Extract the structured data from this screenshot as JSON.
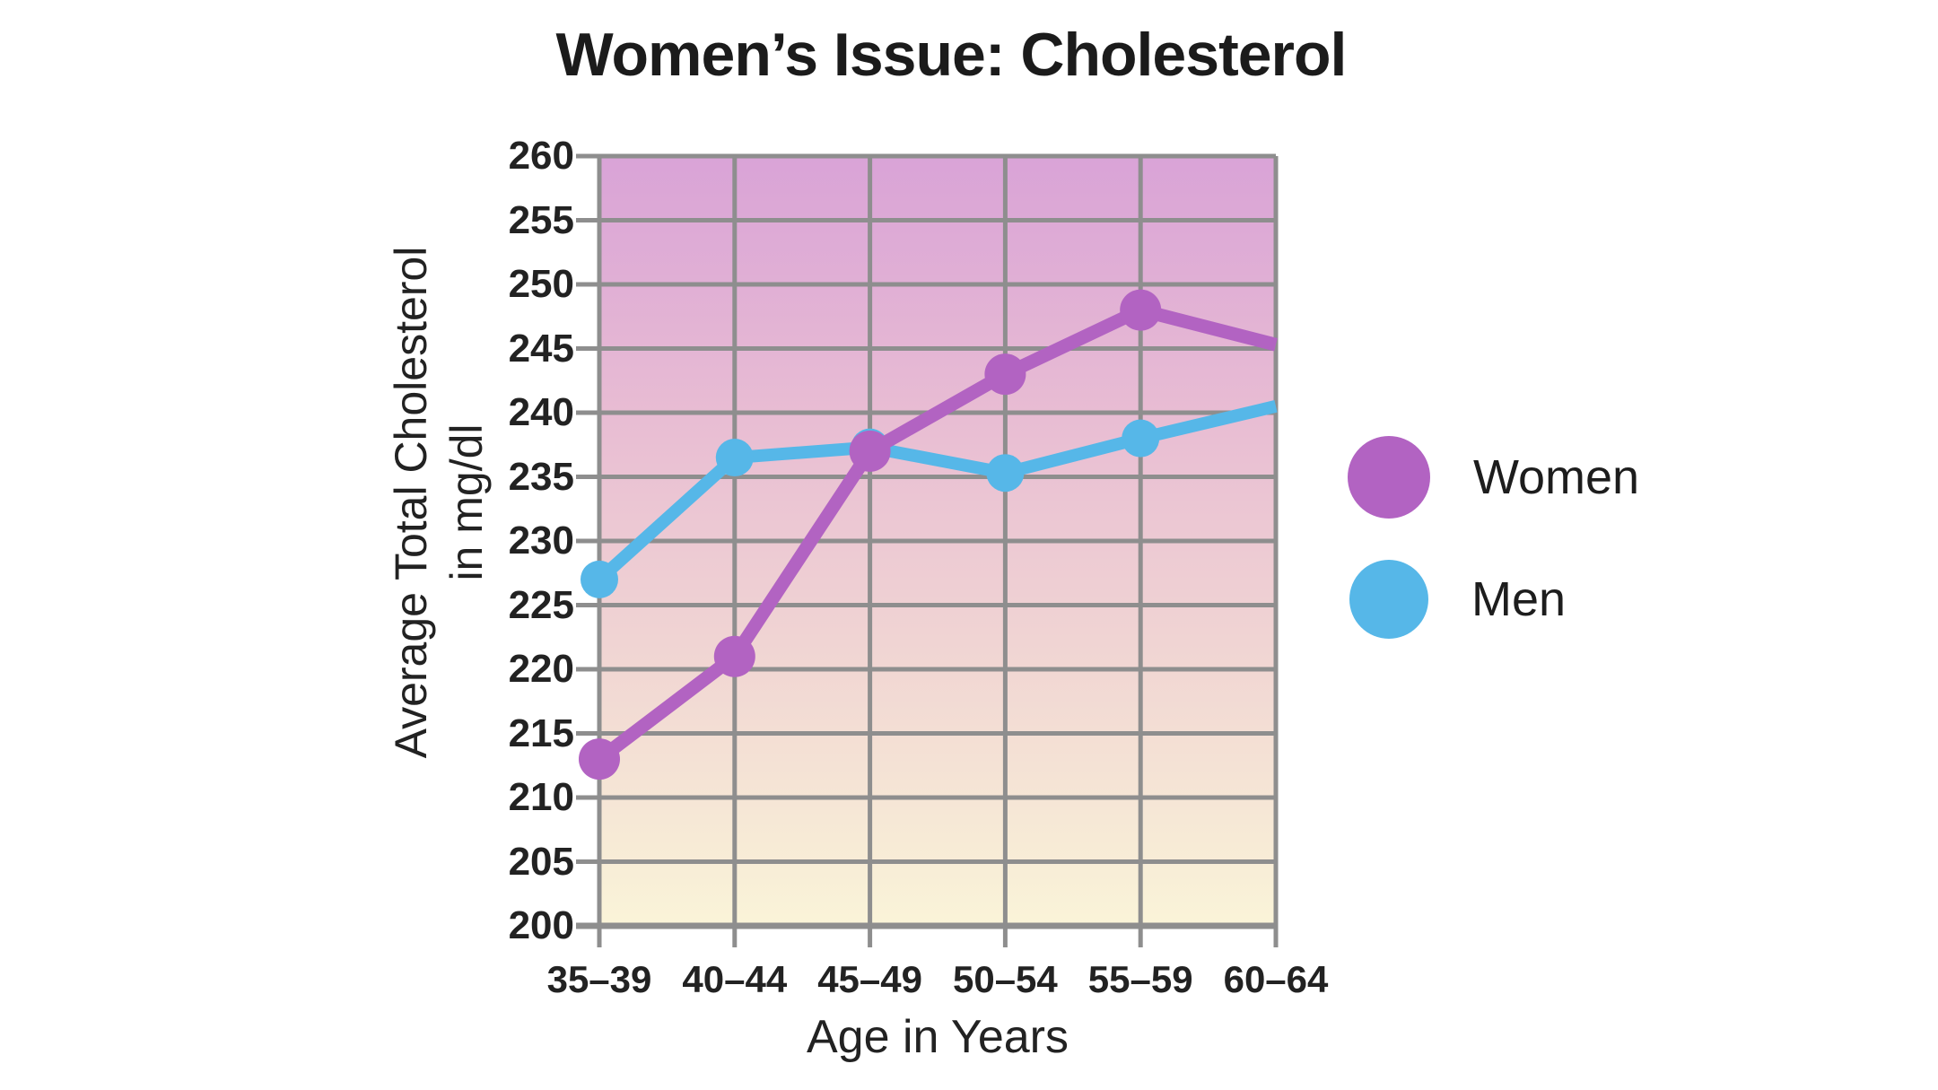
{
  "title": "Women’s Issue: Cholesterol",
  "chart_data": {
    "type": "line",
    "categories": [
      "35–39",
      "40–44",
      "45–49",
      "50–54",
      "55–59",
      "60–64"
    ],
    "series": [
      {
        "name": "Women",
        "color": "#b263c2",
        "values": [
          213,
          221,
          237,
          243,
          248,
          245.3
        ]
      },
      {
        "name": "Men",
        "color": "#56b7e8",
        "values": [
          227,
          236.5,
          237.3,
          235.3,
          238,
          240.5
        ]
      }
    ],
    "title": "Women’s Issue: Cholesterol",
    "xlabel": "Age in Years",
    "ylabel_line1": "Average Total Cholesterol",
    "ylabel_line2": "in mg/dl",
    "ylim": [
      200,
      260
    ],
    "yticks": [
      260,
      255,
      250,
      245,
      240,
      235,
      230,
      225,
      220,
      215,
      210,
      205,
      200
    ],
    "grid": true,
    "legend_position": "right",
    "last_point_has_marker": false,
    "gridline_color": "#8e8e8e",
    "plot_bg_gradient": [
      "#d9a3d7",
      "#e8bcd3",
      "#f1d7d3",
      "#faf4d8"
    ]
  }
}
